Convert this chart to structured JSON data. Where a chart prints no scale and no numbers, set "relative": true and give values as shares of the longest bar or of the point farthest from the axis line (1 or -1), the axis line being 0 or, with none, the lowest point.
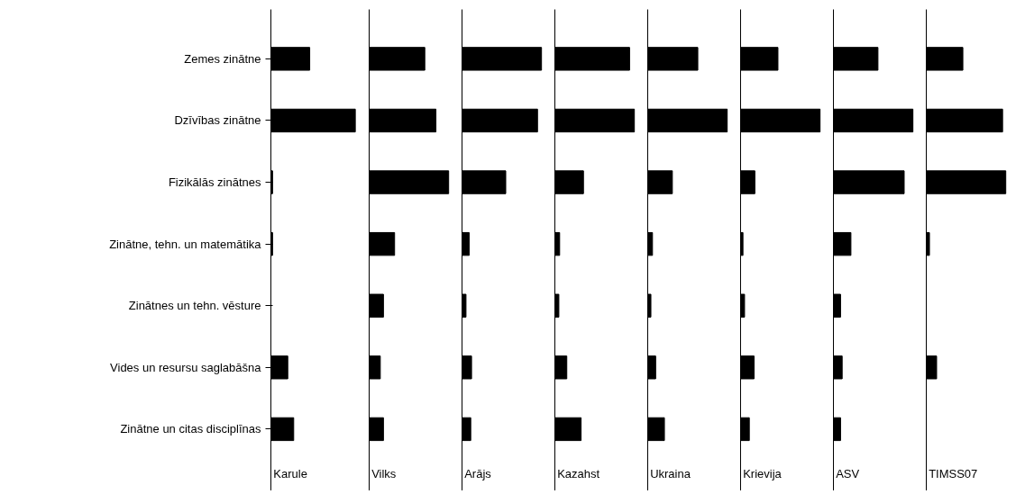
{
  "chart_data": [
    {
      "type": "bar",
      "orientation": "horizontal",
      "relative": true,
      "categories": [
        "Zemes zinātne",
        "Dzīvības zinātne",
        "Fizikālās zinātnes",
        "Zinātne, tehn. un matemātika",
        "Zinātnes un tehn. vēsture",
        "Vides un resursu saglabāšna",
        "Zinātne un citas disciplīnas"
      ],
      "series": [
        {
          "name": "Karule",
          "color": "#000000",
          "values": [
            0.46,
            1.0,
            0.02,
            0.02,
            0,
            0.2,
            0.27
          ]
        }
      ]
    },
    {
      "type": "bar",
      "orientation": "horizontal",
      "relative": true,
      "tick_labels": false,
      "categories": [
        null,
        null,
        null,
        null,
        null,
        null,
        null
      ],
      "series": [
        {
          "name": "Vilks",
          "color": "#000000",
          "values": [
            0.7,
            0.84,
            1.0,
            0.32,
            0.18,
            0.14,
            0.18
          ]
        }
      ]
    },
    {
      "type": "bar",
      "orientation": "horizontal",
      "relative": true,
      "tick_labels": false,
      "categories": [
        null,
        null,
        null,
        null,
        null,
        null,
        null
      ],
      "series": [
        {
          "name": "Arājs",
          "color": "#000000",
          "values": [
            1.0,
            0.95,
            0.55,
            0.09,
            0.05,
            0.12,
            0.11
          ]
        }
      ]
    },
    {
      "type": "bar",
      "orientation": "horizontal",
      "relative": true,
      "tick_labels": false,
      "categories": [
        null,
        null,
        null,
        null,
        null,
        null,
        null
      ],
      "series": [
        {
          "name": "Kazahst",
          "color": "#000000",
          "values": [
            0.94,
            1.0,
            0.36,
            0.06,
            0.05,
            0.15,
            0.33
          ]
        }
      ]
    },
    {
      "type": "bar",
      "orientation": "horizontal",
      "relative": true,
      "tick_labels": false,
      "categories": [
        null,
        null,
        null,
        null,
        null,
        null,
        null
      ],
      "series": [
        {
          "name": "Ukraina",
          "color": "#000000",
          "values": [
            0.63,
            1.0,
            0.31,
            0.06,
            0.04,
            0.1,
            0.21
          ]
        }
      ]
    },
    {
      "type": "bar",
      "orientation": "horizontal",
      "relative": true,
      "tick_labels": false,
      "categories": [
        null,
        null,
        null,
        null,
        null,
        null,
        null
      ],
      "series": [
        {
          "name": "Krievija",
          "color": "#000000",
          "values": [
            0.47,
            1.0,
            0.18,
            0.03,
            0.05,
            0.17,
            0.11
          ]
        }
      ]
    },
    {
      "type": "bar",
      "orientation": "horizontal",
      "relative": true,
      "tick_labels": false,
      "categories": [
        null,
        null,
        null,
        null,
        null,
        null,
        null
      ],
      "series": [
        {
          "name": "ASV",
          "color": "#000000",
          "values": [
            0.56,
            1.0,
            0.89,
            0.22,
            0.09,
            0.11,
            0.09
          ]
        }
      ]
    },
    {
      "type": "bar",
      "orientation": "horizontal",
      "relative": true,
      "tick_labels": false,
      "categories": [
        null,
        null,
        null,
        null,
        null,
        null,
        null
      ],
      "series": [
        {
          "name": "TIMSS07",
          "color": "#000000",
          "values": [
            0.46,
            0.96,
            1.0,
            0.04,
            0,
            0.13,
            0
          ]
        }
      ]
    }
  ]
}
